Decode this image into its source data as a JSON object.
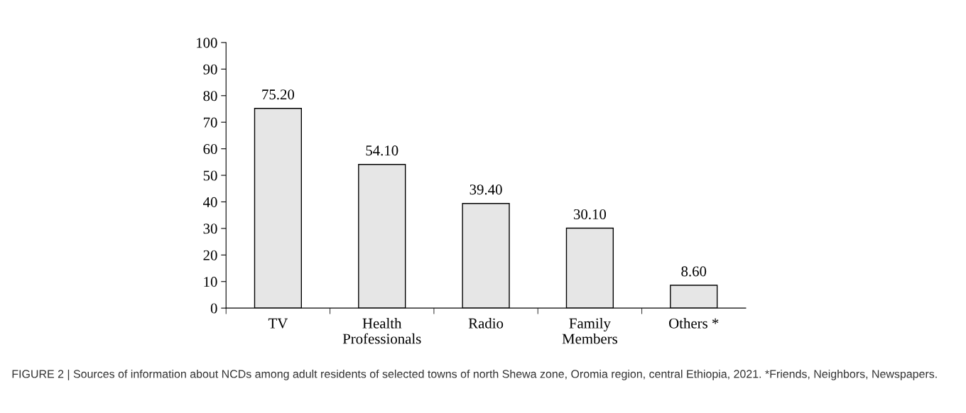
{
  "chart_data": {
    "type": "bar",
    "categories": [
      "TV",
      "Health\nProfessionals",
      "Radio",
      "Family\nMembers",
      "Others *"
    ],
    "values": [
      75.2,
      54.1,
      39.4,
      30.1,
      8.6
    ],
    "value_labels": [
      "75.20",
      "54.10",
      "39.40",
      "30.10",
      "8.60"
    ],
    "color": "#e6e6e6",
    "ylim": [
      0,
      100
    ],
    "yticks": [
      0,
      10,
      20,
      30,
      40,
      50,
      60,
      70,
      80,
      90,
      100
    ],
    "grid": false,
    "legend": false,
    "annotations": [
      "FIGURE 2 | Sources of information about NCDs among adult residents of selected towns of north Shewa zone, Oromia region, central Ethiopia, 2021. *Friends, Neighbors, Newspapers."
    ]
  }
}
